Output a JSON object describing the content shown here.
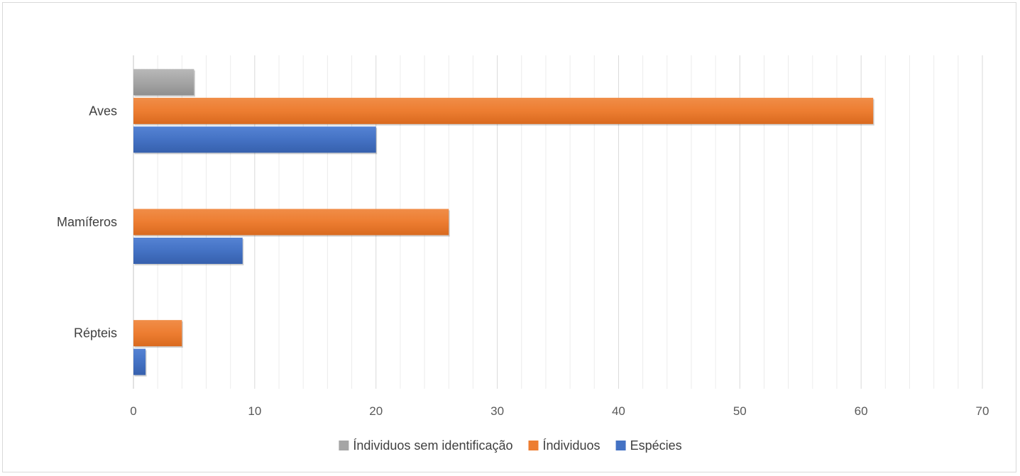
{
  "chart_data": {
    "type": "bar",
    "orientation": "horizontal",
    "title": "",
    "xlabel": "",
    "ylabel": "",
    "categories": [
      "Aves",
      "Mamíferos",
      "Répteis"
    ],
    "series": [
      {
        "name": "Índividuos sem identificação",
        "values": [
          5,
          0,
          0
        ],
        "color": "#a5a5a5"
      },
      {
        "name": "Índividuos",
        "values": [
          61,
          26,
          4
        ],
        "color": "#ed7d31"
      },
      {
        "name": "Espécies",
        "values": [
          20,
          9,
          1
        ],
        "color": "#4472c4"
      }
    ],
    "xlim": [
      0,
      70
    ],
    "xticks": [
      "0",
      "10",
      "20",
      "30",
      "40",
      "50",
      "60",
      "70"
    ],
    "grid": true,
    "legend": "bottom"
  }
}
